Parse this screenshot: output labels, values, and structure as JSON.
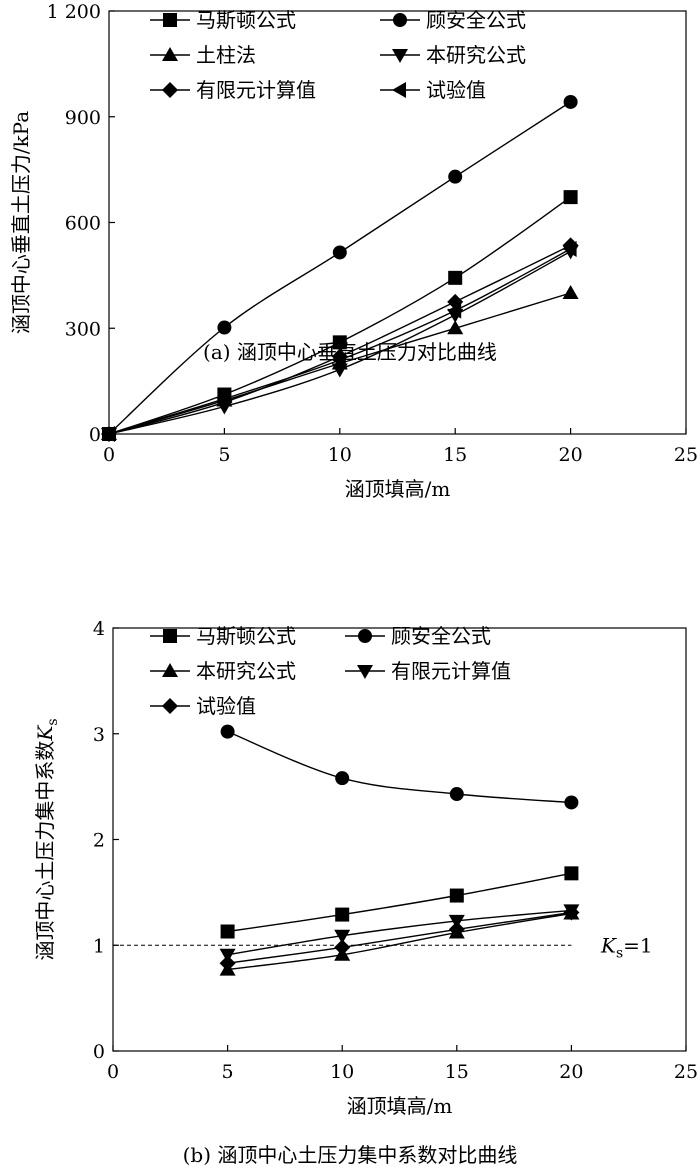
{
  "chart_data": [
    {
      "type": "line",
      "caption": "(a) 涵顶中心垂直土压力对比曲线",
      "xlabel": "涵顶填高/m",
      "ylabel": "涵顶中心垂直土压力/kPa",
      "xlim": [
        0,
        25
      ],
      "ylim": [
        0,
        1200
      ],
      "xticks": [
        0,
        5,
        10,
        15,
        20,
        25
      ],
      "yticks": [
        0,
        300,
        600,
        900,
        1200
      ],
      "ytick_labels": [
        "0",
        "300",
        "600",
        "900",
        "1 200"
      ],
      "x": [
        0,
        5,
        10,
        15,
        20
      ],
      "series": [
        {
          "name": "马斯顿公式",
          "marker": "square",
          "values": [
            0,
            112,
            260,
            443,
            672
          ]
        },
        {
          "name": "顾安全公式",
          "marker": "circle",
          "values": [
            0,
            302,
            515,
            730,
            942
          ]
        },
        {
          "name": "土柱法",
          "marker": "triangle-up",
          "values": [
            0,
            95,
            200,
            300,
            400
          ]
        },
        {
          "name": "本研究公式",
          "marker": "triangle-down",
          "values": [
            0,
            78,
            183,
            338,
            518
          ]
        },
        {
          "name": "有限元计算值",
          "marker": "diamond",
          "values": [
            0,
            90,
            220,
            375,
            535
          ]
        },
        {
          "name": "试验值",
          "marker": "triangle-left",
          "values": [
            0,
            100,
            210,
            350,
            525
          ]
        }
      ],
      "legend": "top-left"
    },
    {
      "type": "line",
      "caption": "(b) 涵顶中心土压力集中系数对比曲线",
      "xlabel": "涵顶填高/m",
      "ylabel": "涵顶中心土压力集中系数",
      "ylabel_symbol": "K",
      "ylabel_subscript": "s",
      "xlim": [
        0,
        25
      ],
      "ylim": [
        0,
        4
      ],
      "xticks": [
        0,
        5,
        10,
        15,
        20,
        25
      ],
      "yticks": [
        0,
        1,
        2,
        3,
        4
      ],
      "ytick_labels": [
        "0",
        "1",
        "2",
        "3",
        "4"
      ],
      "x": [
        5,
        10,
        15,
        20
      ],
      "series": [
        {
          "name": "马斯顿公式",
          "marker": "square",
          "values": [
            1.13,
            1.29,
            1.47,
            1.68
          ]
        },
        {
          "name": "顾安全公式",
          "marker": "circle",
          "values": [
            3.02,
            2.58,
            2.43,
            2.35
          ]
        },
        {
          "name": "本研究公式",
          "marker": "triangle-up",
          "values": [
            0.77,
            0.91,
            1.12,
            1.3
          ]
        },
        {
          "name": "有限元计算值",
          "marker": "triangle-down",
          "values": [
            0.91,
            1.09,
            1.23,
            1.33
          ]
        },
        {
          "name": "试验值",
          "marker": "diamond",
          "values": [
            0.83,
            0.98,
            1.15,
            1.31
          ]
        }
      ],
      "reference_line": {
        "y": 1,
        "x_range": [
          0,
          20
        ],
        "style": "dashed",
        "label_symbol": "K",
        "label_subscript": "s",
        "label_rest": "=1"
      },
      "legend": "top-left"
    }
  ]
}
